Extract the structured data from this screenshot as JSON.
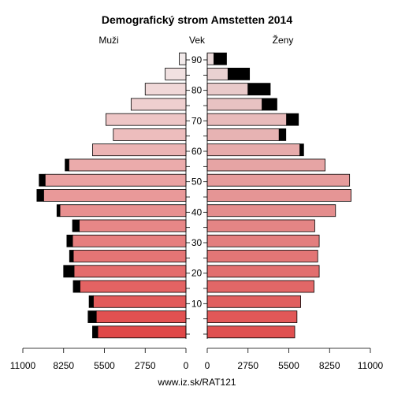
{
  "chart_data": {
    "type": "bar",
    "title": "Demografický strom Amstetten 2014",
    "left_label": "Muži",
    "center_label": "Vek",
    "right_label": "Ženy",
    "footer": "www.iz.sk/RAT121",
    "xlim": [
      0,
      11000
    ],
    "x_ticks_left": [
      "11000",
      "8250",
      "5500",
      "2750",
      "0"
    ],
    "x_ticks_right": [
      "0",
      "2750",
      "5500",
      "8250",
      "11000"
    ],
    "age_ticks": [
      "10",
      "20",
      "30",
      "40",
      "50",
      "60",
      "70",
      "80",
      "90"
    ],
    "age_groups": [
      "0-4",
      "5-9",
      "10-14",
      "15-19",
      "20-24",
      "25-29",
      "30-34",
      "35-39",
      "40-44",
      "45-49",
      "50-54",
      "55-59",
      "60-64",
      "65-69",
      "70-74",
      "75-79",
      "80-84",
      "85-89",
      "90+"
    ],
    "series": [
      {
        "name": "Muži",
        "values": [
          5950,
          6050,
          6250,
          7150,
          7550,
          7600,
          7650,
          7200,
          8500,
          9600,
          9500,
          7900,
          6300,
          4900,
          5400,
          3700,
          2750,
          1400,
          450
        ]
      },
      {
        "name": "Muži (surplus)",
        "values": [
          350,
          550,
          280,
          450,
          700,
          250,
          380,
          450,
          200,
          450,
          400,
          250,
          0,
          0,
          0,
          0,
          0,
          0,
          0
        ]
      },
      {
        "name": "Ženy",
        "values": [
          5900,
          6050,
          6300,
          7200,
          7550,
          7450,
          7550,
          7250,
          8650,
          9700,
          9600,
          7950,
          6250,
          4850,
          5350,
          3700,
          2750,
          1400,
          450
        ]
      },
      {
        "name": "Ženy (surplus)",
        "values": [
          0,
          0,
          0,
          0,
          0,
          0,
          0,
          0,
          0,
          0,
          0,
          0,
          250,
          450,
          800,
          1000,
          1500,
          1450,
          850
        ]
      }
    ],
    "colors": {
      "male_young": "#e04848",
      "male_old": "#f2eaea",
      "female_young": "#e05050",
      "female_old": "#ead9d9",
      "surplus": "#000000"
    }
  }
}
